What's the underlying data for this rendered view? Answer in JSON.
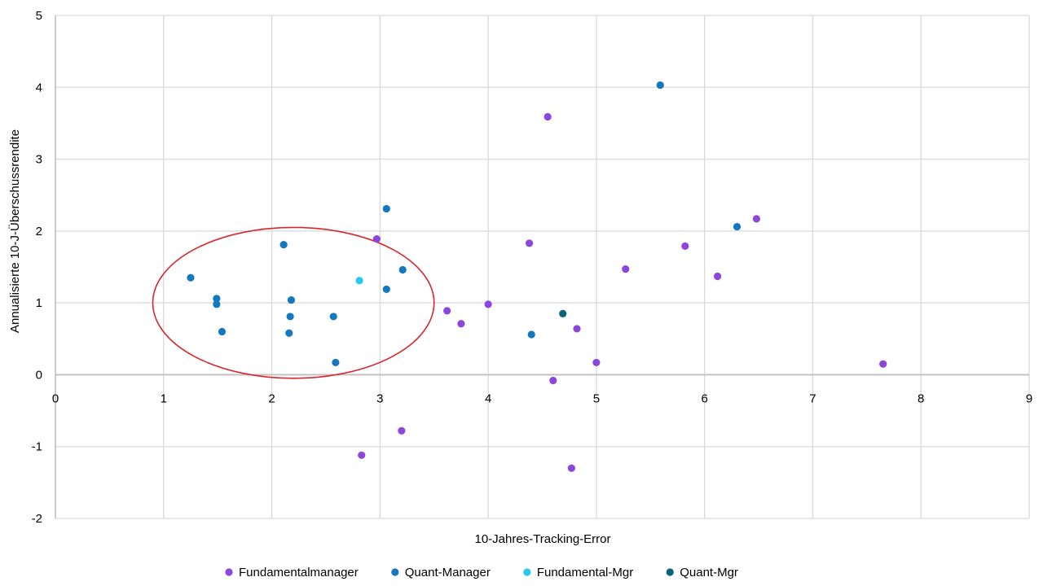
{
  "chart_data": {
    "type": "scatter",
    "title": "",
    "xlabel": "10-Jahres-Tracking-Error",
    "ylabel": "Annualisierte 10-J-Überschussrendite",
    "xlim": [
      0,
      9
    ],
    "ylim": [
      -2,
      5
    ],
    "x_ticks": [
      "0",
      "1",
      "2",
      "3",
      "4",
      "5",
      "6",
      "7",
      "8",
      "9"
    ],
    "y_ticks": [
      "-2",
      "-1",
      "0",
      "1",
      "2",
      "3",
      "4",
      "5"
    ],
    "grid": true,
    "legend_position": "bottom",
    "annotation": {
      "shape": "ellipse",
      "color": "#d9262c",
      "center": [
        2.2,
        1.0
      ],
      "radius_x": 1.3,
      "radius_y": 1.05
    },
    "series": [
      {
        "name": "Fundamentalmanager",
        "color": "#8c46dc",
        "points": [
          [
            2.97,
            1.89
          ],
          [
            4.55,
            3.59
          ],
          [
            4.38,
            1.83
          ],
          [
            5.82,
            1.79
          ],
          [
            6.48,
            2.17
          ],
          [
            5.27,
            1.47
          ],
          [
            6.12,
            1.37
          ],
          [
            3.62,
            0.89
          ],
          [
            4.0,
            0.98
          ],
          [
            3.75,
            0.71
          ],
          [
            4.82,
            0.64
          ],
          [
            5.0,
            0.17
          ],
          [
            7.65,
            0.15
          ],
          [
            4.6,
            -0.08
          ],
          [
            3.2,
            -0.78
          ],
          [
            2.83,
            -1.12
          ],
          [
            4.77,
            -1.3
          ]
        ]
      },
      {
        "name": "Quant-Manager",
        "color": "#1478be",
        "points": [
          [
            1.25,
            1.35
          ],
          [
            1.49,
            1.06
          ],
          [
            1.49,
            0.98
          ],
          [
            1.54,
            0.6
          ],
          [
            2.11,
            1.81
          ],
          [
            2.18,
            1.04
          ],
          [
            2.17,
            0.81
          ],
          [
            2.16,
            0.58
          ],
          [
            2.57,
            0.81
          ],
          [
            2.59,
            0.17
          ],
          [
            3.06,
            2.31
          ],
          [
            3.06,
            1.19
          ],
          [
            3.21,
            1.46
          ],
          [
            4.4,
            0.56
          ],
          [
            5.59,
            4.03
          ],
          [
            6.3,
            2.06
          ]
        ]
      },
      {
        "name": "Fundamental-Mgr",
        "color": "#28c8f0",
        "points": [
          [
            2.81,
            1.31
          ]
        ]
      },
      {
        "name": "Quant-Mgr",
        "color": "#0a6478",
        "points": [
          [
            4.69,
            0.85
          ]
        ]
      }
    ]
  }
}
